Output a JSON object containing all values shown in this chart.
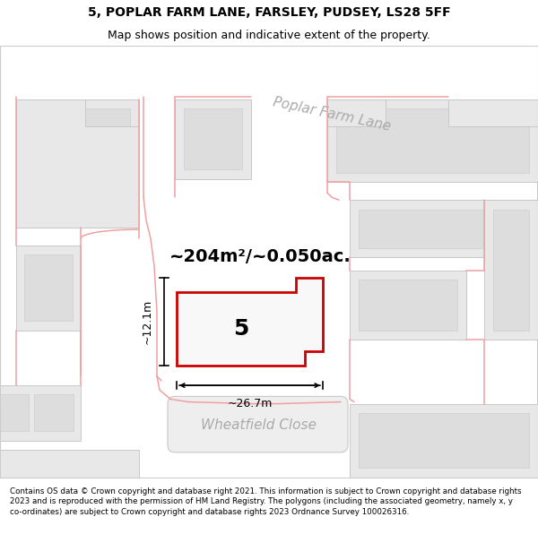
{
  "title_line1": "5, POPLAR FARM LANE, FARSLEY, PUDSEY, LS28 5FF",
  "title_line2": "Map shows position and indicative extent of the property.",
  "footer_text": "Contains OS data © Crown copyright and database right 2021. This information is subject to Crown copyright and database rights 2023 and is reproduced with the permission of HM Land Registry. The polygons (including the associated geometry, namely x, y co-ordinates) are subject to Crown copyright and database rights 2023 Ordnance Survey 100026316.",
  "street_label_1": "Poplar Farm Lane",
  "street_label_2": "Wheatfield Close",
  "area_label": "~204m²/~0.050ac.",
  "number_label": "5",
  "dim_width": "~26.7m",
  "dim_height": "~12.1m",
  "highlight_color": "#cc0000",
  "pink_color": "#f0a0a0",
  "bld_fill": "#e8e8e8",
  "bld_edge": "#c8c8c8",
  "map_bg": "#ffffff",
  "road_fill": "#f0f0f0",
  "title_fontsize": 10,
  "subtitle_fontsize": 9,
  "footer_fontsize": 6.3,
  "street_fontsize": 11,
  "area_fontsize": 14,
  "number_fontsize": 18,
  "dim_fontsize": 9
}
